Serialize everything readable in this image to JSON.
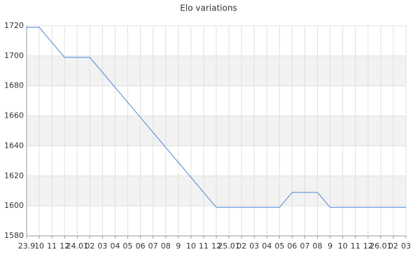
{
  "chart_data": {
    "type": "line",
    "title": "Elo variations",
    "categories": [
      "23.9",
      "10",
      "11",
      "12",
      "24.01",
      "02",
      "03",
      "04",
      "05",
      "06",
      "07",
      "08",
      "9",
      "10",
      "11",
      "12",
      "25.01",
      "02",
      "03",
      "04",
      "05",
      "06",
      "07",
      "08",
      "9",
      "10",
      "11",
      "12",
      "26.01",
      "02",
      "03"
    ],
    "values": [
      1719,
      1719,
      1709,
      1699,
      1699,
      1699,
      1689,
      1679,
      1669,
      1659,
      1649,
      1639,
      1629,
      1619,
      1609,
      1599,
      1599,
      1599,
      1599,
      1599,
      1599,
      1609,
      1609,
      1609,
      1599,
      1599,
      1599,
      1599,
      1599,
      1599,
      1599
    ],
    "color": "#4a86d8",
    "ylim": [
      1580,
      1720
    ],
    "yticks": [
      1580,
      1600,
      1620,
      1640,
      1660,
      1680,
      1700,
      1720
    ],
    "grid": true,
    "alternate_bands": true
  }
}
